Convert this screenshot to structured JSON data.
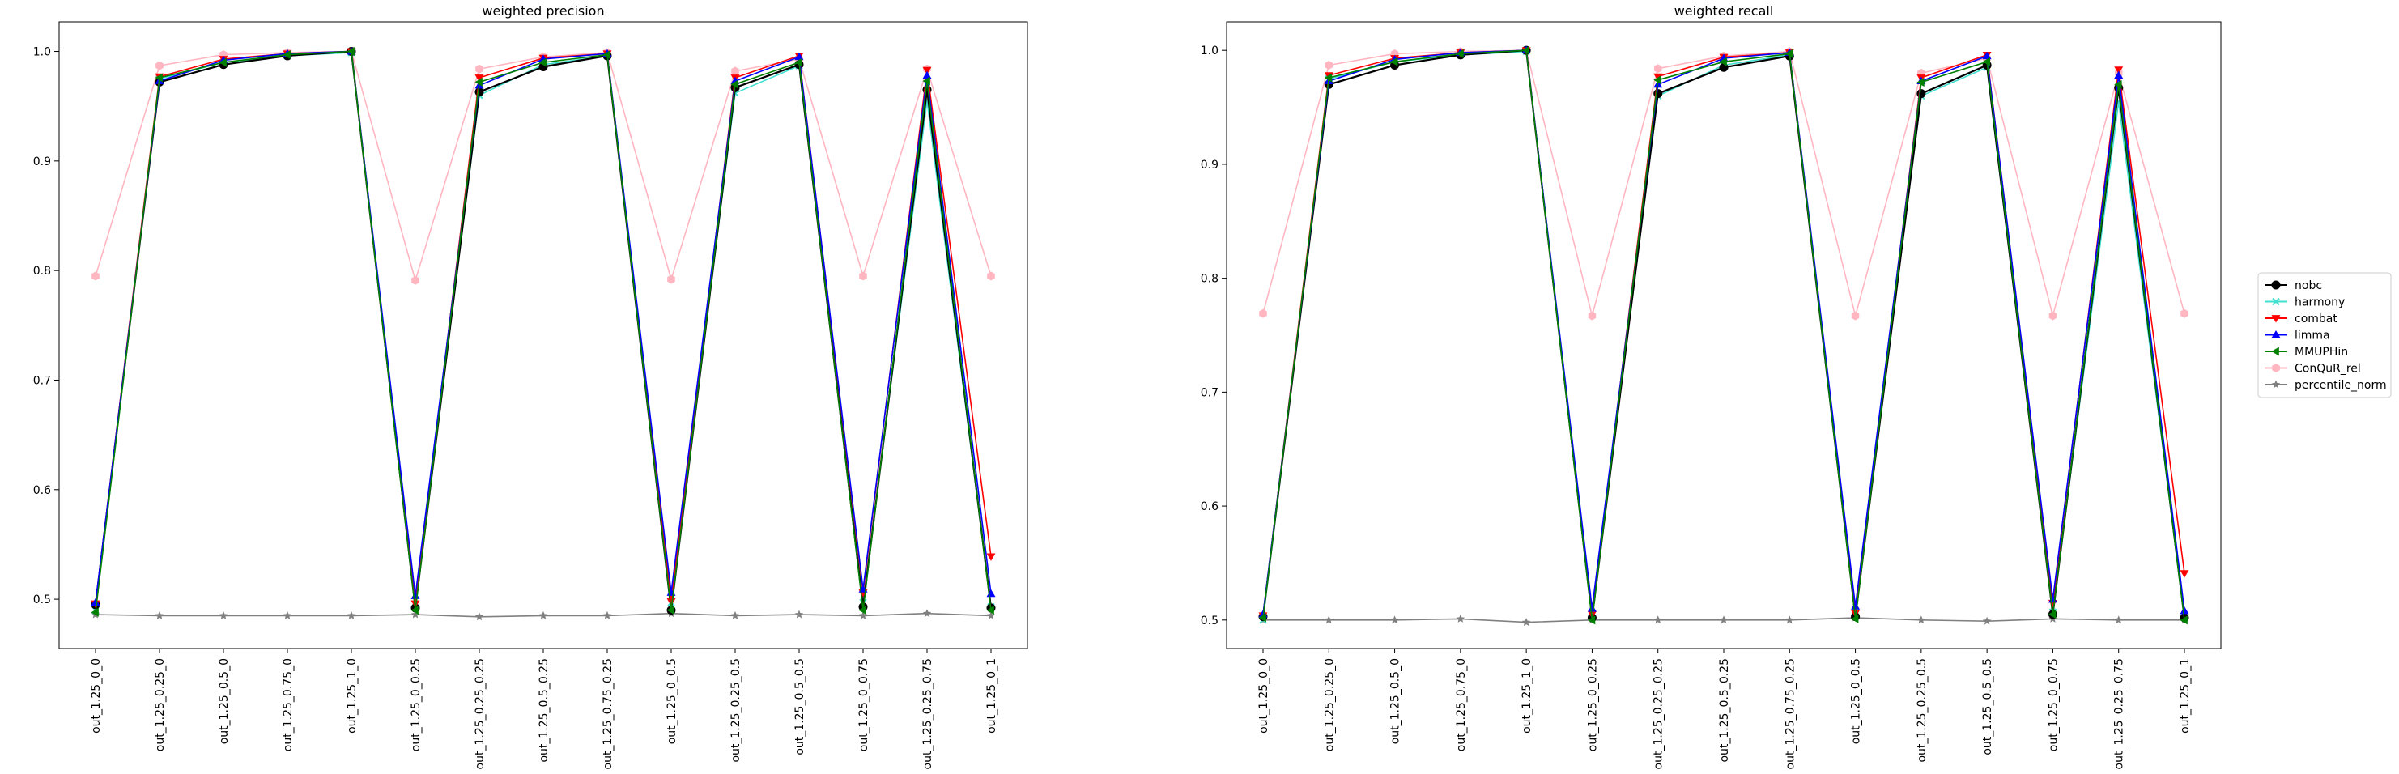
{
  "chart_data": [
    {
      "type": "line",
      "title": "weighted precision",
      "xlabel": "",
      "ylabel": "",
      "ylim": [
        0.455,
        1.027
      ],
      "yticks": [
        "0.5",
        "0.6",
        "0.7",
        "0.8",
        "0.9",
        "1.0"
      ],
      "categories": [
        "out_1.25_0_0",
        "out_1.25_0.25_0",
        "out_1.25_0.5_0",
        "out_1.25_0.75_0",
        "out_1.25_1_0",
        "out_1.25_0_0.25",
        "out_1.25_0.25_0.25",
        "out_1.25_0.5_0.25",
        "out_1.25_0.75_0.25",
        "out_1.25_0_0.5",
        "out_1.25_0.25_0.5",
        "out_1.25_0.5_0.5",
        "out_1.25_0_0.75",
        "out_1.25_0.25_0.75",
        "out_1.25_0_1"
      ],
      "series": [
        {
          "name": "nobc",
          "values": [
            0.495,
            0.972,
            0.988,
            0.996,
            1.0,
            0.492,
            0.963,
            0.986,
            0.996,
            0.49,
            0.967,
            0.988,
            0.493,
            0.965,
            0.492
          ]
        },
        {
          "name": "harmony",
          "values": [
            0.49,
            0.975,
            0.99,
            0.996,
            0.999,
            0.495,
            0.96,
            0.988,
            0.996,
            0.497,
            0.962,
            0.987,
            0.497,
            0.955,
            0.493
          ]
        },
        {
          "name": "combat",
          "values": [
            0.496,
            0.977,
            0.993,
            0.998,
            1.0,
            0.496,
            0.976,
            0.994,
            0.998,
            0.498,
            0.976,
            0.996,
            0.506,
            0.983,
            0.539
          ]
        },
        {
          "name": "limma",
          "values": [
            0.497,
            0.973,
            0.992,
            0.998,
            1.0,
            0.503,
            0.969,
            0.993,
            0.998,
            0.506,
            0.973,
            0.995,
            0.509,
            0.978,
            0.505
          ]
        },
        {
          "name": "MMUPHin",
          "values": [
            0.488,
            0.976,
            0.99,
            0.997,
            1.0,
            0.49,
            0.972,
            0.99,
            0.997,
            0.49,
            0.97,
            0.99,
            0.49,
            0.973,
            0.49
          ]
        },
        {
          "name": "ConQuR_rel",
          "values": [
            0.795,
            0.987,
            0.997,
            0.999,
            1.0,
            0.791,
            0.984,
            0.995,
            0.999,
            0.792,
            0.982,
            0.993,
            0.795,
            0.984,
            0.795
          ]
        },
        {
          "name": "percentile_norm",
          "values": [
            0.486,
            0.485,
            0.485,
            0.485,
            0.485,
            0.486,
            0.484,
            0.485,
            0.485,
            0.487,
            0.485,
            0.486,
            0.485,
            0.487,
            0.485
          ]
        }
      ]
    },
    {
      "type": "line",
      "title": "weighted recall",
      "xlabel": "",
      "ylabel": "",
      "ylim": [
        0.475,
        1.025
      ],
      "yticks": [
        "0.5",
        "0.6",
        "0.7",
        "0.8",
        "0.9",
        "1.0"
      ],
      "categories": [
        "out_1.25_0_0",
        "out_1.25_0.25_0",
        "out_1.25_0.5_0",
        "out_1.25_0.75_0",
        "out_1.25_1_0",
        "out_1.25_0_0.25",
        "out_1.25_0.25_0.25",
        "out_1.25_0.5_0.25",
        "out_1.25_0.75_0.25",
        "out_1.25_0_0.5",
        "out_1.25_0.25_0.5",
        "out_1.25_0.5_0.5",
        "out_1.25_0_0.75",
        "out_1.25_0.25_0.75",
        "out_1.25_0_1"
      ],
      "series": [
        {
          "name": "nobc",
          "values": [
            0.503,
            0.97,
            0.987,
            0.996,
            1.0,
            0.502,
            0.962,
            0.985,
            0.995,
            0.503,
            0.962,
            0.987,
            0.505,
            0.967,
            0.502
          ]
        },
        {
          "name": "harmony",
          "values": [
            0.5,
            0.975,
            0.99,
            0.996,
            0.999,
            0.505,
            0.96,
            0.987,
            0.996,
            0.507,
            0.96,
            0.985,
            0.507,
            0.955,
            0.503
          ]
        },
        {
          "name": "combat",
          "values": [
            0.504,
            0.978,
            0.993,
            0.998,
            1.0,
            0.505,
            0.977,
            0.994,
            0.998,
            0.506,
            0.976,
            0.996,
            0.515,
            0.983,
            0.541
          ]
        },
        {
          "name": "limma",
          "values": [
            0.505,
            0.973,
            0.992,
            0.998,
            1.0,
            0.51,
            0.97,
            0.993,
            0.998,
            0.512,
            0.973,
            0.995,
            0.518,
            0.978,
            0.508
          ]
        },
        {
          "name": "MMUPHin",
          "values": [
            0.502,
            0.976,
            0.99,
            0.997,
            1.0,
            0.5,
            0.974,
            0.99,
            0.997,
            0.501,
            0.972,
            0.99,
            0.505,
            0.97,
            0.5
          ]
        },
        {
          "name": "ConQuR_rel",
          "values": [
            0.769,
            0.987,
            0.997,
            0.999,
            1.0,
            0.767,
            0.984,
            0.995,
            0.999,
            0.767,
            0.98,
            0.993,
            0.767,
            0.98,
            0.769
          ]
        },
        {
          "name": "percentile_norm",
          "values": [
            0.5,
            0.5,
            0.5,
            0.501,
            0.498,
            0.5,
            0.5,
            0.5,
            0.5,
            0.502,
            0.5,
            0.499,
            0.501,
            0.5,
            0.5
          ]
        }
      ]
    }
  ],
  "legend": {
    "placement": "right",
    "entries": [
      {
        "name": "nobc",
        "color": "#000000",
        "marker": "circle"
      },
      {
        "name": "harmony",
        "color": "#40e0d0",
        "marker": "x"
      },
      {
        "name": "combat",
        "color": "#ff0000",
        "marker": "triangle-down"
      },
      {
        "name": "limma",
        "color": "#0000ff",
        "marker": "triangle-up"
      },
      {
        "name": "MMUPHin",
        "color": "#008000",
        "marker": "triangle-left"
      },
      {
        "name": "ConQuR_rel",
        "color": "#ffb6c1",
        "marker": "hexagon"
      },
      {
        "name": "percentile_norm",
        "color": "#808080",
        "marker": "star"
      }
    ]
  }
}
